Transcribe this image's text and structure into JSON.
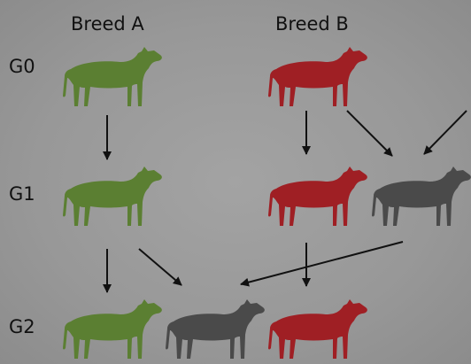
{
  "headers": {
    "breed_a": "Breed A",
    "breed_b": "Breed B"
  },
  "rows": {
    "g0": "G0",
    "g1": "G1",
    "g2": "G2"
  },
  "colors": {
    "breed_a": "#5b7f32",
    "breed_b": "#9f1f24",
    "crossbred": "#4a4a4a",
    "arrow": "#111111"
  },
  "animals": [
    {
      "id": "g0-breed-a",
      "generation": "G0",
      "breed": "breed_a"
    },
    {
      "id": "g0-breed-b",
      "generation": "G0",
      "breed": "breed_b"
    },
    {
      "id": "g1-breed-a",
      "generation": "G1",
      "breed": "breed_a"
    },
    {
      "id": "g1-breed-b",
      "generation": "G1",
      "breed": "breed_b"
    },
    {
      "id": "g1-crossbred",
      "generation": "G1",
      "breed": "crossbred"
    },
    {
      "id": "g2-breed-a",
      "generation": "G2",
      "breed": "breed_a"
    },
    {
      "id": "g2-crossbred",
      "generation": "G2",
      "breed": "crossbred"
    },
    {
      "id": "g2-breed-b",
      "generation": "G2",
      "breed": "breed_b"
    }
  ],
  "edges": [
    {
      "from": "g0-breed-a",
      "to": "g1-breed-a"
    },
    {
      "from": "g0-breed-b",
      "to": "g1-breed-b"
    },
    {
      "from": "g0-breed-b",
      "to": "g1-crossbred"
    },
    {
      "from": "off-canvas-right",
      "to": "g1-crossbred"
    },
    {
      "from": "g1-breed-a",
      "to": "g2-breed-a"
    },
    {
      "from": "g1-breed-a",
      "to": "g2-crossbred"
    },
    {
      "from": "g1-crossbred",
      "to": "g2-crossbred"
    },
    {
      "from": "g1-breed-b",
      "to": "g2-breed-b"
    }
  ]
}
